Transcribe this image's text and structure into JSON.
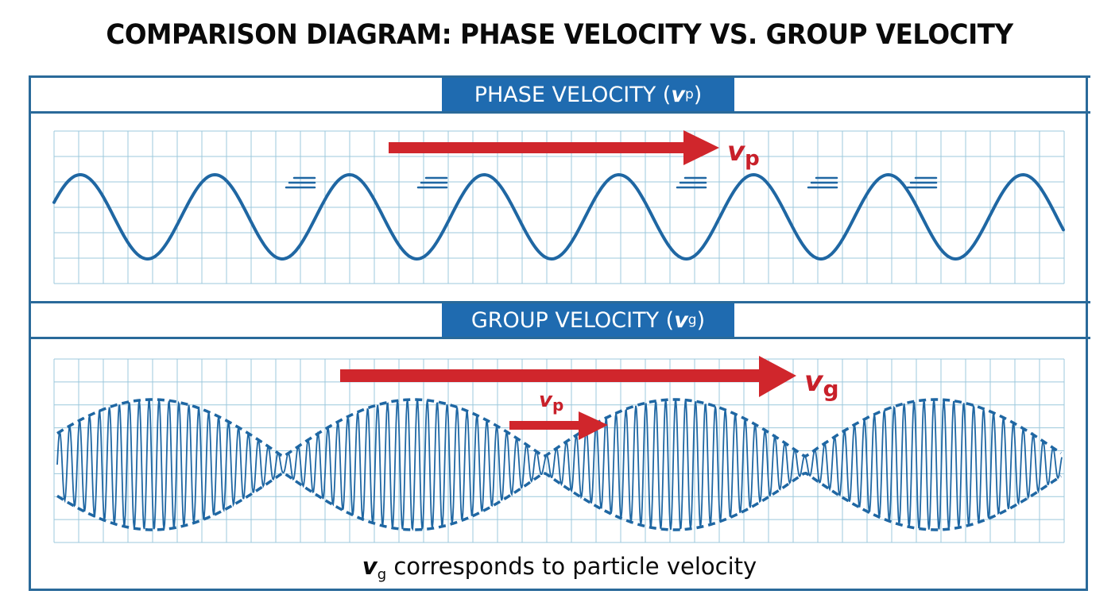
{
  "title": "COMPARISON DIAGRAM: PHASE VELOCITY VS. GROUP VELOCITY",
  "colors": {
    "frame": "#2a6a9a",
    "band_fill": "#1f6bb0",
    "wave": "#1f67a3",
    "arrow": "#d0262c",
    "grid": "#9cc8dc"
  },
  "phase_panel": {
    "label_text": "PHASE VELOCITY (",
    "label_symbol": "v",
    "label_subscript": "p",
    "label_close": ")",
    "arrow_label_symbol": "v",
    "arrow_label_subscript": "p",
    "wave_type": "sine",
    "wave_cycles": 7.5,
    "motion_marks": 5
  },
  "group_panel": {
    "label_text": "GROUP VELOCITY (",
    "label_symbol": "v",
    "label_subscript": "g",
    "label_close": ")",
    "large_arrow_label_symbol": "v",
    "large_arrow_label_subscript": "g",
    "small_arrow_label_symbol": "v",
    "small_arrow_label_subscript": "p",
    "wave_type": "modulated carrier with dashed envelope",
    "envelope_lobes": 4
  },
  "caption": {
    "symbol": "v",
    "subscript": "g",
    "text": " corresponds to particle velocity"
  }
}
